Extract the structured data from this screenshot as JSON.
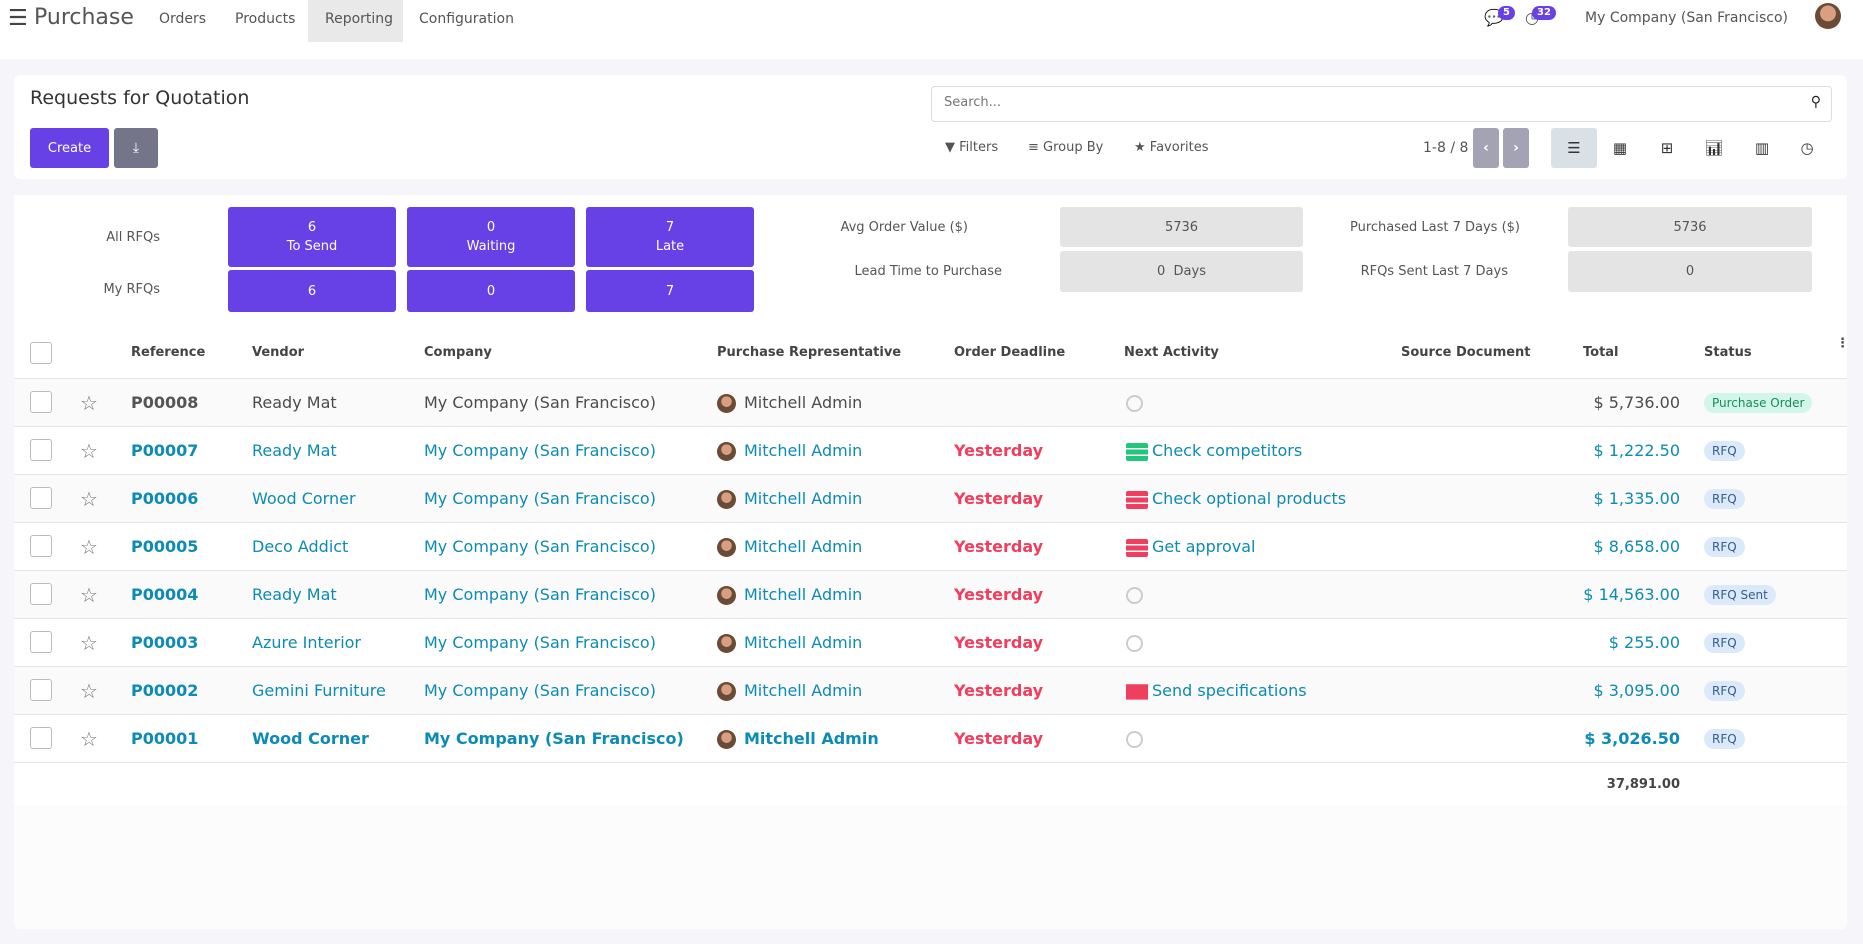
{
  "app": {
    "title": "Purchase",
    "menu": [
      "Orders",
      "Products",
      "Reporting",
      "Configuration"
    ],
    "active_menu": "Reporting",
    "messages_count": "5",
    "activities_count": "32",
    "company": "My Company (San Francisco)"
  },
  "control": {
    "title": "Requests for Quotation",
    "create_label": "Create",
    "search_placeholder": "Search...",
    "filters": "Filters",
    "group_by": "Group By",
    "favorites": "Favorites",
    "pager": "1-8 / 8",
    "views": [
      "list",
      "kanban",
      "pivot",
      "graph",
      "calendar",
      "activity"
    ],
    "active_view": "list"
  },
  "dashboard": {
    "all_rfqs": "All RFQs",
    "my_rfqs": "My RFQs",
    "to_send": {
      "value": "6",
      "label": "To Send",
      "mine": "6"
    },
    "waiting": {
      "value": "0",
      "label": "Waiting",
      "mine": "0"
    },
    "late": {
      "value": "7",
      "label": "Late",
      "mine": "7"
    },
    "avg_order_label": "Avg Order Value ($)",
    "avg_order_value": "5736",
    "lead_time_label": "Lead Time to Purchase",
    "lead_time_value": "0  Days",
    "purchased_label": "Purchased Last 7 Days ($)",
    "purchased_value": "5736",
    "rfqs_sent_label": "RFQs Sent Last 7 Days",
    "rfqs_sent_value": "0"
  },
  "table": {
    "columns": [
      "Reference",
      "Vendor",
      "Company",
      "Purchase Representative",
      "Order Deadline",
      "Next Activity",
      "Source Document",
      "Total",
      "Status"
    ],
    "rows": [
      {
        "ref": "P00008",
        "vendor": "Ready Mat",
        "company": "My Company (San Francisco)",
        "rep": "Mitchell Admin",
        "deadline": "",
        "activity": "",
        "activity_icon": "clock",
        "total": "$ 5,736.00",
        "status": "Purchase Order"
      },
      {
        "ref": "P00007",
        "vendor": "Ready Mat",
        "company": "My Company (San Francisco)",
        "rep": "Mitchell Admin",
        "deadline": "Yesterday",
        "activity": "Check competitors",
        "activity_icon": "tasks-green",
        "total": "$ 1,222.50",
        "status": "RFQ"
      },
      {
        "ref": "P00006",
        "vendor": "Wood Corner",
        "company": "My Company (San Francisco)",
        "rep": "Mitchell Admin",
        "deadline": "Yesterday",
        "activity": "Check optional products",
        "activity_icon": "tasks-red",
        "total": "$ 1,335.00",
        "status": "RFQ"
      },
      {
        "ref": "P00005",
        "vendor": "Deco Addict",
        "company": "My Company (San Francisco)",
        "rep": "Mitchell Admin",
        "deadline": "Yesterday",
        "activity": "Get approval",
        "activity_icon": "tasks-red",
        "total": "$ 8,658.00",
        "status": "RFQ"
      },
      {
        "ref": "P00004",
        "vendor": "Ready Mat",
        "company": "My Company (San Francisco)",
        "rep": "Mitchell Admin",
        "deadline": "Yesterday",
        "activity": "",
        "activity_icon": "clock",
        "total": "$ 14,563.00",
        "status": "RFQ Sent"
      },
      {
        "ref": "P00003",
        "vendor": "Azure Interior",
        "company": "My Company (San Francisco)",
        "rep": "Mitchell Admin",
        "deadline": "Yesterday",
        "activity": "",
        "activity_icon": "clock",
        "total": "$ 255.00",
        "status": "RFQ"
      },
      {
        "ref": "P00002",
        "vendor": "Gemini Furniture",
        "company": "My Company (San Francisco)",
        "rep": "Mitchell Admin",
        "deadline": "Yesterday",
        "activity": "Send specifications",
        "activity_icon": "envelope-red",
        "total": "$ 3,095.00",
        "status": "RFQ"
      },
      {
        "ref": "P00001",
        "vendor": "Wood Corner",
        "company": "My Company (San Francisco)",
        "rep": "Mitchell Admin",
        "deadline": "Yesterday",
        "activity": "",
        "activity_icon": "clock",
        "total": "$ 3,026.50",
        "status": "RFQ"
      }
    ],
    "sum_total": "37,891.00"
  },
  "colors": {
    "primary": "#6741e6",
    "link": "#0c8bb3",
    "late": "#f03e5e",
    "po_badge": "#d2f7ea",
    "rfq_badge": "#dbeafb"
  }
}
